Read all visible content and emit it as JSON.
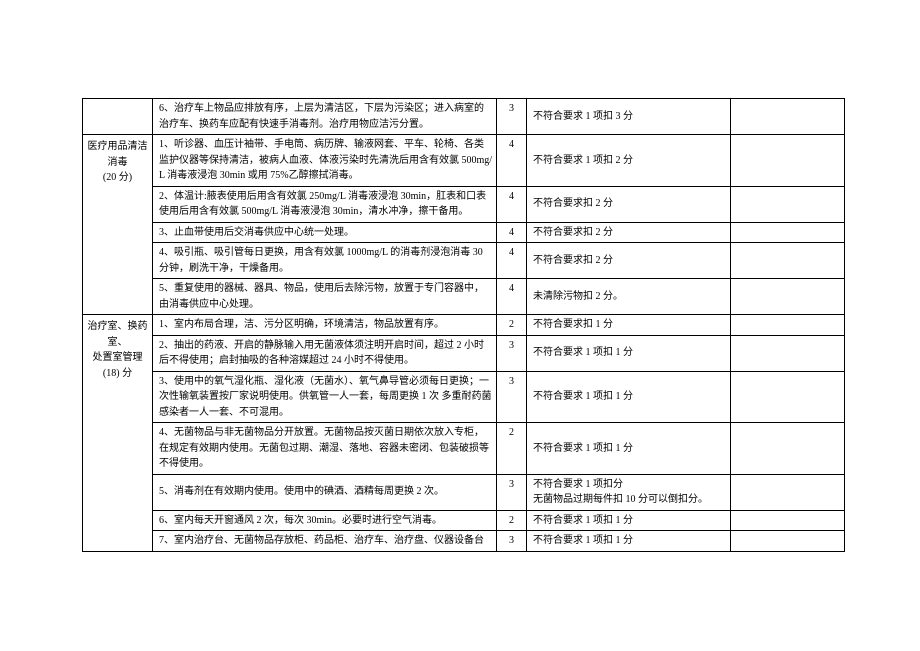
{
  "categories": [
    {
      "label_lines": [
        "医疗用品清洁",
        "消毒",
        "(20 分)"
      ]
    },
    {
      "label_lines": [
        "治疗室、换药",
        "室、",
        "处置室管理",
        "(18) 分"
      ]
    }
  ],
  "rows": [
    {
      "cat": null,
      "item": "6、治疗车上物品应排放有序，上层为清洁区，下层为污染区；进入病室的治疗车、换药车应配有快速手消毒剂。治疗用物应洁污分置。",
      "score": "3",
      "criteria": "不符合要求 1 项扣 3 分"
    },
    {
      "cat": 0,
      "span": 5,
      "item": "1、听诊器、血压计袖带、手电筒、病历牌、输液网套、平车、轮椅、各类监护仪器等保持清洁，被病人血液、体液污染时先清洗后用含有效氯 500mg/L 消毒液浸泡 30min 或用 75%乙醇擦拭消毒。",
      "score": "4",
      "criteria": "不符合要求 1 项扣 2 分"
    },
    {
      "cat": null,
      "item": "2、体温计:腋表使用后用含有效氯 250mg/L 消毒液浸泡 30min，肛表和口表使用后用含有效氯 500mg/L 消毒液浸泡 30min，清水冲净，擦干备用。",
      "score": "4",
      "criteria": "不符合要求扣 2 分"
    },
    {
      "cat": null,
      "item": "3、止血带使用后交消毒供应中心统一处理。",
      "score": "4",
      "criteria": "不符合要求扣 2 分"
    },
    {
      "cat": null,
      "item": "4、吸引瓶、吸引管每日更换，用含有效氯 1000mg/L 的消毒剂浸泡消毒 30 分钟，刷洗干净，干燥备用。",
      "score": "4",
      "criteria": "不符合要求扣 2 分"
    },
    {
      "cat": null,
      "item": "5、重复使用的器械、器具、物品，使用后去除污物，放置于专门容器中，由消毒供应中心处理。",
      "score": "4",
      "criteria": "未清除污物扣  2 分。"
    },
    {
      "cat": 1,
      "span": 7,
      "item": "1、室内布局合理，洁、污分区明确，环境清洁，物品放置有序。",
      "score": "2",
      "criteria": "不符合要求扣 1 分"
    },
    {
      "cat": null,
      "item": "2、抽出的药液、开启的静脉输入用无菌液体须注明开启时间，超过 2 小时后不得使用；启封抽吸的各种溶媒超过 24 小时不得使用。",
      "score": "3",
      "criteria": "不符合要求 1 项扣 1 分"
    },
    {
      "cat": null,
      "item": "3、使用中的氧气湿化瓶、湿化液（无菌水）、氧气鼻导管必须每日更换；一次性输氧装置按厂家说明使用。供氧管一人一套，每周更换 1 次 多重耐药菌感染者一人一套、不可混用。",
      "score": "3",
      "criteria": "不符合要求 1 项扣 1 分"
    },
    {
      "cat": null,
      "item": "4、无菌物品与非无菌物品分开放置。无菌物品按灭菌日期依次放入专柜，在规定有效期内使用。无菌包过期、潮湿、落地、容器未密闭、包装破损等不得使用。",
      "score": "2",
      "criteria": "不符合要求 1 项扣 1 分"
    },
    {
      "cat": null,
      "item": "5、消毒剂在有效期内使用。使用中的碘酒、酒精每周更换 2 次。",
      "score": "3",
      "criteria": "不符合要求 1 项扣分\n无菌物品过期每件扣 10 分可以倒扣分。"
    },
    {
      "cat": null,
      "item": "6、室内每天开窗通风 2 次，每次 30min。必要时进行空气消毒。",
      "score": "2",
      "criteria": "不符合要求 1 项扣 1 分"
    },
    {
      "cat": null,
      "item": "7、室内治疗台、无菌物品存放柜、药品柜、治疗车、治疗盘、仪器设备台",
      "score": "3",
      "criteria": "不符合要求 1 项扣 1 分"
    }
  ]
}
